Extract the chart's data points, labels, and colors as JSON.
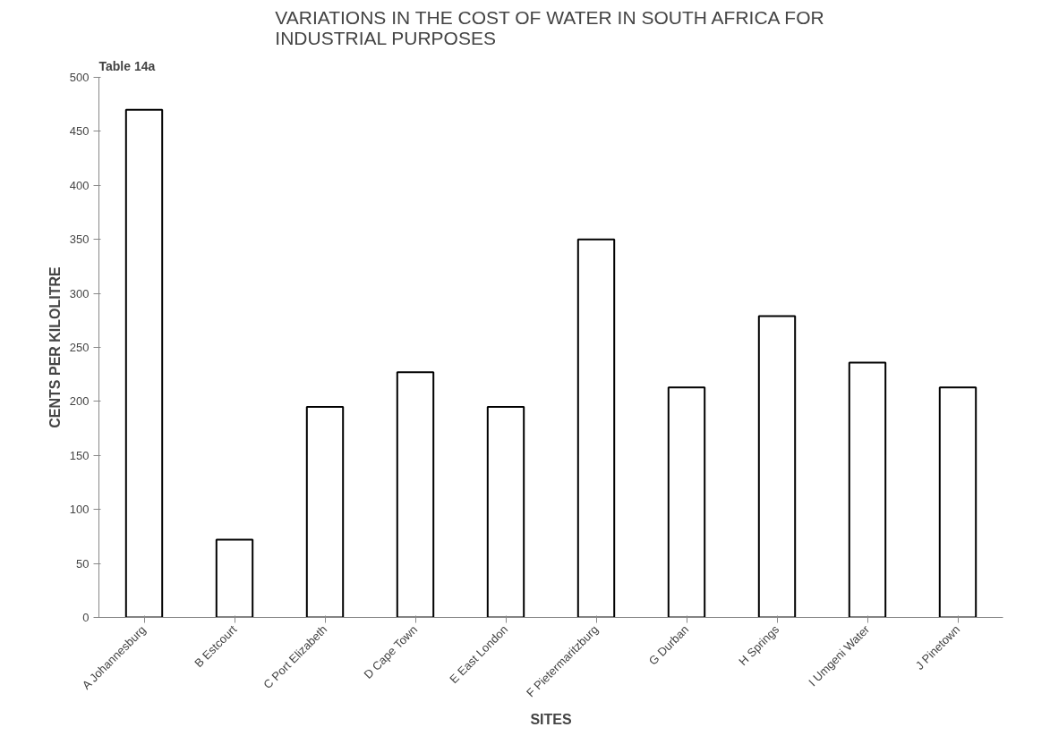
{
  "chart_data": {
    "type": "bar",
    "title": "VARIATIONS IN THE COST OF WATER IN SOUTH AFRICA FOR\nINDUSTRIAL PURPOSES",
    "xlabel": "SITES",
    "ylabel": "CENTS PER KILOLITRE",
    "annotations": [
      "Table 14a"
    ],
    "categories": [
      "A Johannesburg",
      "B Estcourt",
      "C Port Elizabeth",
      "D Cape Town",
      "E East London",
      "F Pietermaritzburg",
      "G Durban",
      "H Springs",
      "I Umgeni Water",
      "J Pinetown"
    ],
    "values": [
      470,
      72,
      195,
      227,
      195,
      350,
      213,
      279,
      236,
      213
    ],
    "color": "#ffffff",
    "ylim": [
      0,
      500
    ],
    "yticks": [
      0,
      50,
      100,
      150,
      200,
      250,
      300,
      350,
      400,
      450,
      500
    ],
    "grid": false
  }
}
